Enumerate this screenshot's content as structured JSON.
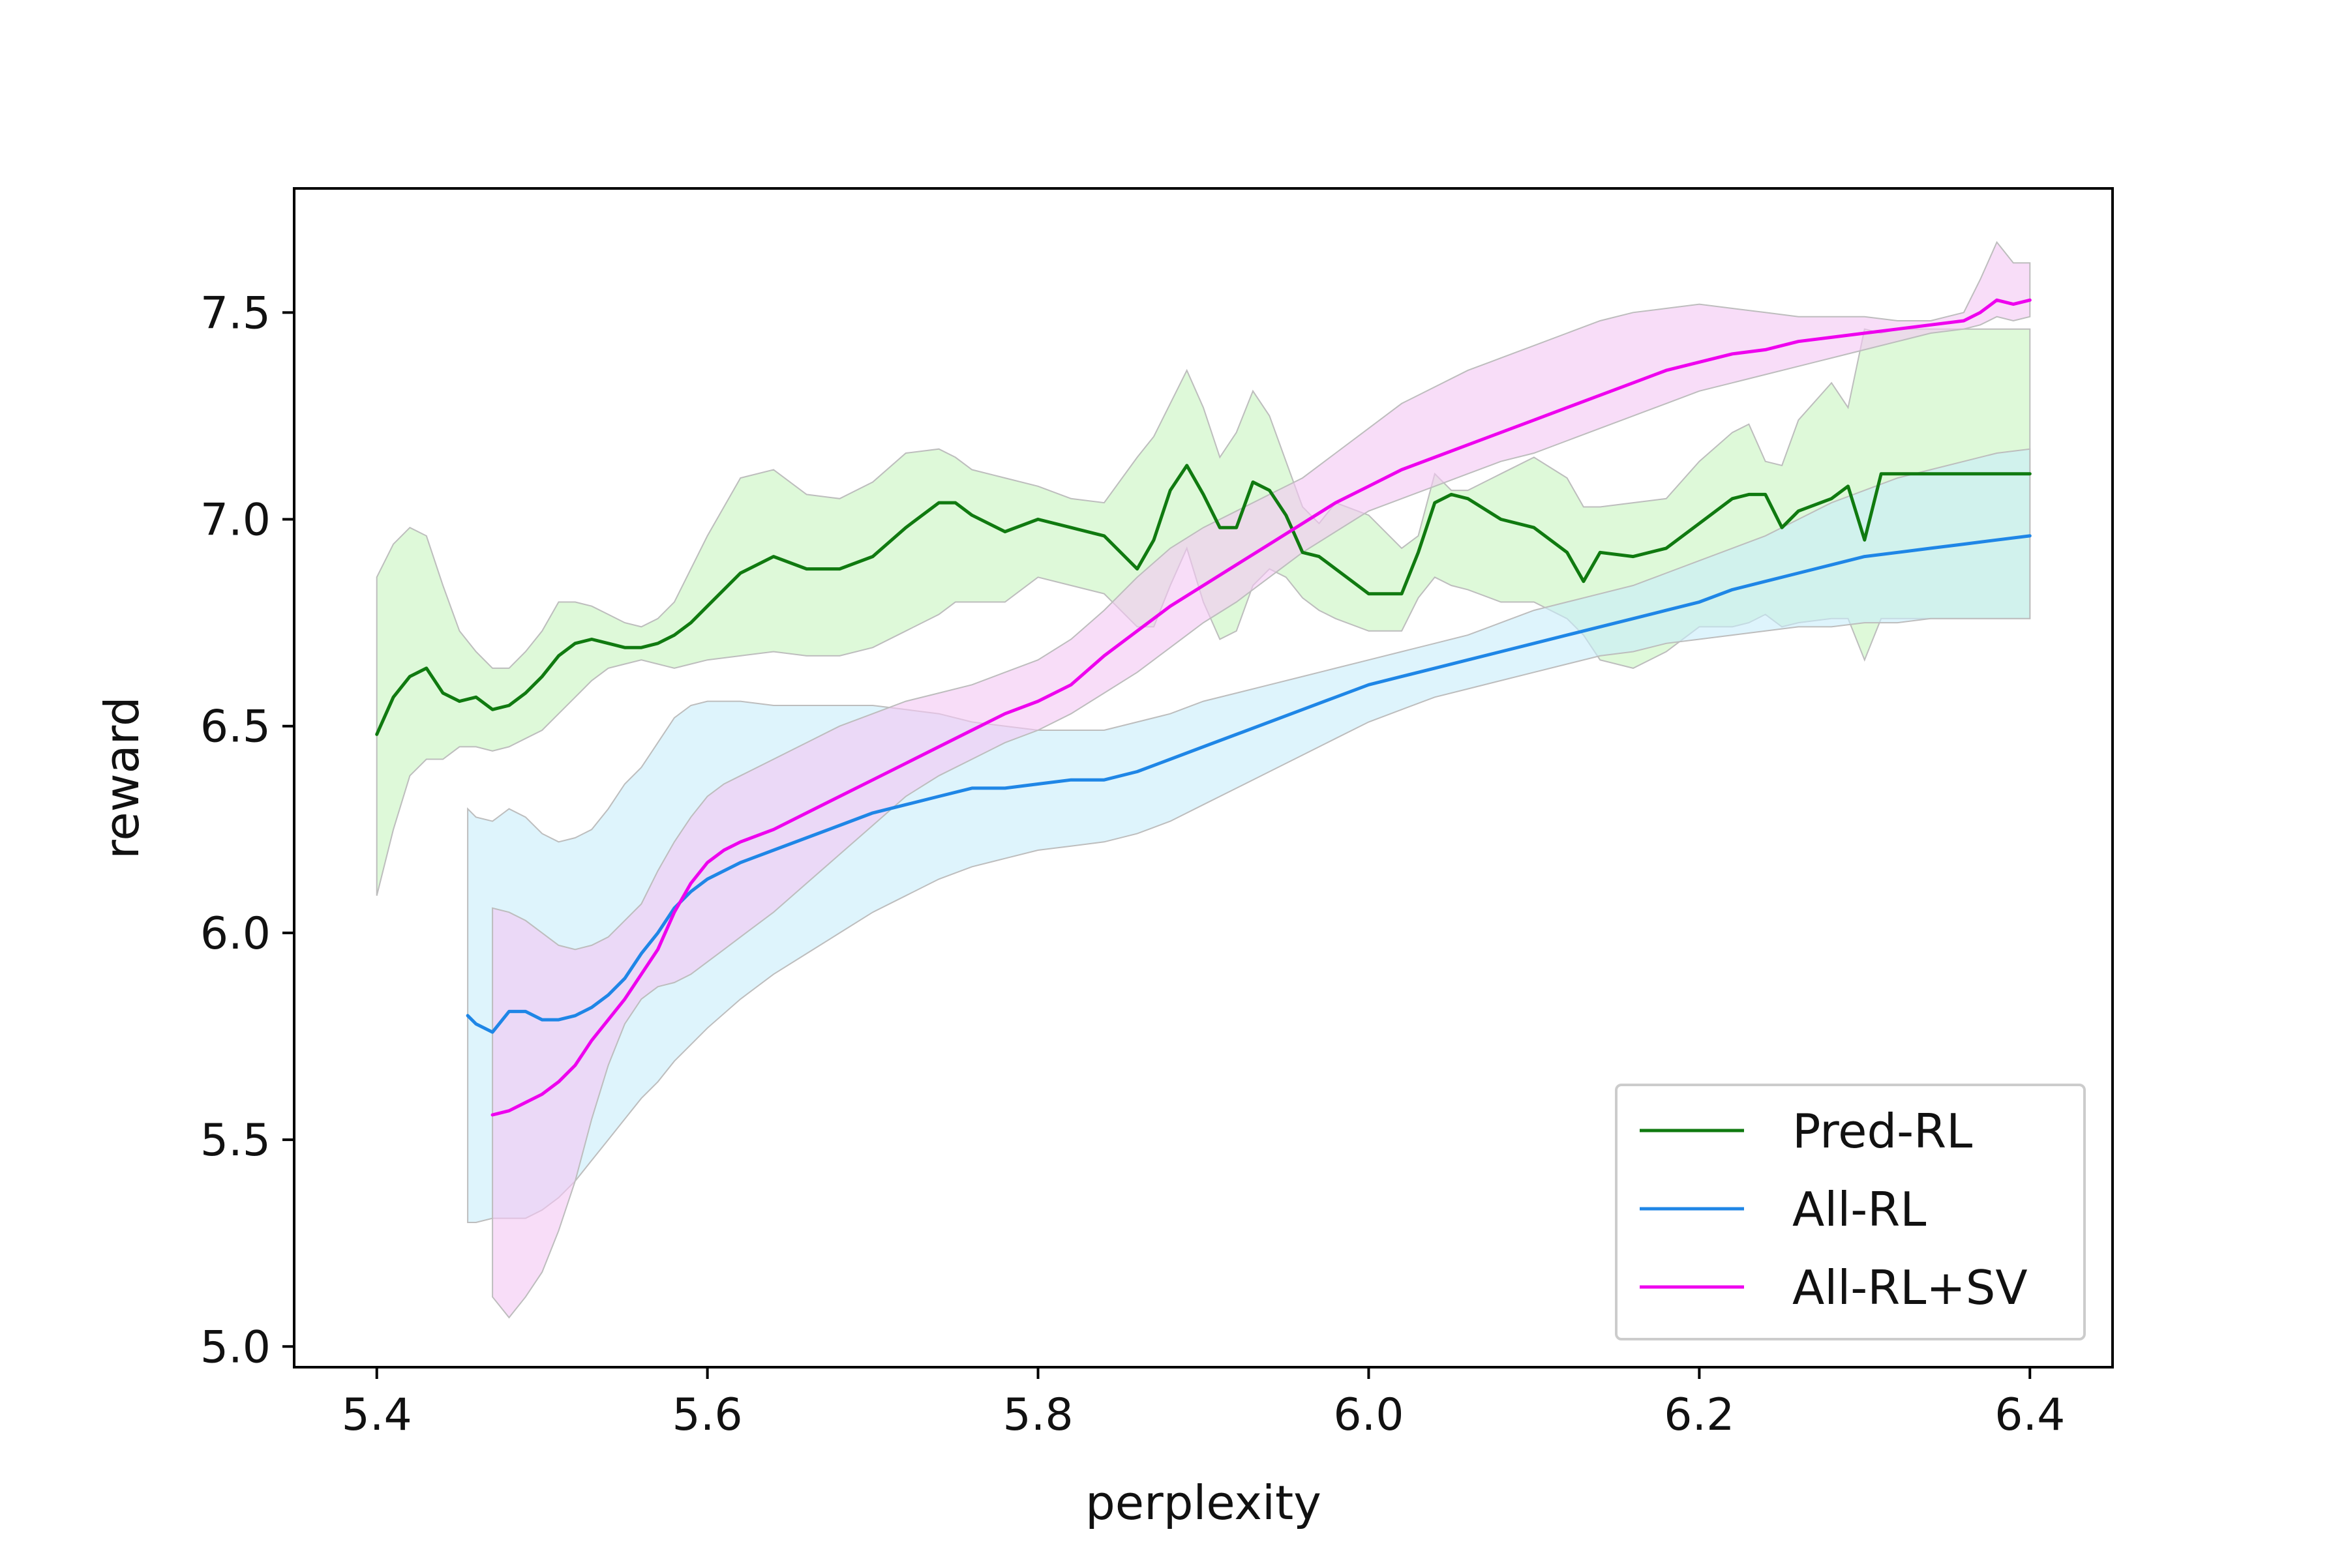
{
  "chart_data": {
    "type": "line",
    "xlabel": "perplexity",
    "ylabel": "reward",
    "xlim": [
      5.35,
      6.45
    ],
    "ylim": [
      4.95,
      7.8
    ],
    "xticks": [
      5.4,
      5.6,
      5.8,
      6.0,
      6.2,
      6.4
    ],
    "xtick_labels": [
      "5.4",
      "5.6",
      "5.8",
      "6.0",
      "6.2",
      "6.4"
    ],
    "yticks": [
      5.0,
      5.5,
      6.0,
      6.5,
      7.0,
      7.5
    ],
    "ytick_labels": [
      "5.0",
      "5.5",
      "6.0",
      "6.5",
      "7.0",
      "7.5"
    ],
    "grid": false,
    "legend_position": "lower-right",
    "series": [
      {
        "name": "Pred-RL",
        "color": "#107a10",
        "band_color": "#c8f5c0",
        "x": [
          5.4,
          5.41,
          5.42,
          5.43,
          5.44,
          5.45,
          5.46,
          5.47,
          5.48,
          5.49,
          5.5,
          5.51,
          5.52,
          5.53,
          5.54,
          5.55,
          5.56,
          5.57,
          5.58,
          5.59,
          5.6,
          5.62,
          5.64,
          5.66,
          5.68,
          5.7,
          5.72,
          5.74,
          5.75,
          5.76,
          5.78,
          5.8,
          5.82,
          5.84,
          5.86,
          5.87,
          5.88,
          5.89,
          5.9,
          5.91,
          5.92,
          5.93,
          5.94,
          5.95,
          5.96,
          5.97,
          5.98,
          6.0,
          6.02,
          6.03,
          6.04,
          6.05,
          6.06,
          6.08,
          6.1,
          6.12,
          6.13,
          6.14,
          6.16,
          6.18,
          6.2,
          6.22,
          6.23,
          6.24,
          6.25,
          6.26,
          6.28,
          6.29,
          6.3,
          6.31,
          6.32,
          6.34,
          6.36,
          6.38,
          6.4
        ],
        "y": [
          6.48,
          6.57,
          6.62,
          6.64,
          6.58,
          6.56,
          6.57,
          6.54,
          6.55,
          6.58,
          6.62,
          6.67,
          6.7,
          6.71,
          6.7,
          6.69,
          6.69,
          6.7,
          6.72,
          6.75,
          6.79,
          6.87,
          6.91,
          6.88,
          6.88,
          6.91,
          6.98,
          7.04,
          7.04,
          7.01,
          6.97,
          7.0,
          6.98,
          6.96,
          6.88,
          6.95,
          7.07,
          7.13,
          7.06,
          6.98,
          6.98,
          7.09,
          7.07,
          7.01,
          6.92,
          6.91,
          6.88,
          6.82,
          6.82,
          6.92,
          7.04,
          7.06,
          7.05,
          7.0,
          6.98,
          6.92,
          6.85,
          6.92,
          6.91,
          6.93,
          6.99,
          7.05,
          7.06,
          7.06,
          6.98,
          7.02,
          7.05,
          7.08,
          6.95,
          7.11,
          7.11,
          7.11,
          7.11,
          7.11,
          7.11
        ],
        "lower": [
          6.09,
          6.25,
          6.38,
          6.42,
          6.42,
          6.45,
          6.45,
          6.44,
          6.45,
          6.47,
          6.49,
          6.53,
          6.57,
          6.61,
          6.64,
          6.65,
          6.66,
          6.65,
          6.64,
          6.65,
          6.66,
          6.67,
          6.68,
          6.67,
          6.67,
          6.69,
          6.73,
          6.77,
          6.8,
          6.8,
          6.8,
          6.86,
          6.84,
          6.82,
          6.74,
          6.74,
          6.84,
          6.93,
          6.8,
          6.71,
          6.73,
          6.84,
          6.88,
          6.86,
          6.81,
          6.78,
          6.76,
          6.73,
          6.73,
          6.81,
          6.86,
          6.84,
          6.83,
          6.8,
          6.8,
          6.76,
          6.72,
          6.66,
          6.64,
          6.68,
          6.74,
          6.74,
          6.75,
          6.77,
          6.74,
          6.75,
          6.76,
          6.76,
          6.66,
          6.76,
          6.76,
          6.76,
          6.76,
          6.76,
          6.76
        ],
        "upper": [
          6.86,
          6.94,
          6.98,
          6.96,
          6.84,
          6.73,
          6.68,
          6.64,
          6.64,
          6.68,
          6.73,
          6.8,
          6.8,
          6.79,
          6.77,
          6.75,
          6.74,
          6.76,
          6.8,
          6.88,
          6.96,
          7.1,
          7.12,
          7.06,
          7.05,
          7.09,
          7.16,
          7.17,
          7.15,
          7.12,
          7.1,
          7.08,
          7.05,
          7.04,
          7.15,
          7.2,
          7.28,
          7.36,
          7.27,
          7.15,
          7.21,
          7.31,
          7.25,
          7.14,
          7.03,
          6.99,
          7.04,
          7.01,
          6.93,
          6.96,
          7.11,
          7.07,
          7.07,
          7.11,
          7.15,
          7.1,
          7.03,
          7.03,
          7.04,
          7.05,
          7.14,
          7.21,
          7.23,
          7.14,
          7.13,
          7.24,
          7.33,
          7.27,
          7.46,
          7.45,
          7.46,
          7.46,
          7.46,
          7.46,
          7.46
        ]
      },
      {
        "name": "All-RL",
        "color": "#1f86e6",
        "band_color": "#c8ecfa",
        "x": [
          5.455,
          5.46,
          5.47,
          5.48,
          5.49,
          5.5,
          5.51,
          5.52,
          5.53,
          5.54,
          5.55,
          5.56,
          5.57,
          5.58,
          5.59,
          5.6,
          5.62,
          5.64,
          5.66,
          5.68,
          5.7,
          5.72,
          5.74,
          5.76,
          5.78,
          5.8,
          5.82,
          5.84,
          5.86,
          5.88,
          5.9,
          5.92,
          5.94,
          5.96,
          5.98,
          6.0,
          6.02,
          6.04,
          6.06,
          6.08,
          6.1,
          6.12,
          6.14,
          6.16,
          6.18,
          6.2,
          6.22,
          6.24,
          6.26,
          6.28,
          6.3,
          6.32,
          6.34,
          6.36,
          6.38,
          6.4
        ],
        "y": [
          5.8,
          5.78,
          5.76,
          5.81,
          5.81,
          5.79,
          5.79,
          5.8,
          5.82,
          5.85,
          5.89,
          5.95,
          6.0,
          6.06,
          6.1,
          6.13,
          6.17,
          6.2,
          6.23,
          6.26,
          6.29,
          6.31,
          6.33,
          6.35,
          6.35,
          6.36,
          6.37,
          6.37,
          6.39,
          6.42,
          6.45,
          6.48,
          6.51,
          6.54,
          6.57,
          6.6,
          6.62,
          6.64,
          6.66,
          6.68,
          6.7,
          6.72,
          6.74,
          6.76,
          6.78,
          6.8,
          6.83,
          6.85,
          6.87,
          6.89,
          6.91,
          6.92,
          6.93,
          6.94,
          6.95,
          6.96
        ],
        "lower": [
          5.3,
          5.3,
          5.31,
          5.31,
          5.31,
          5.33,
          5.36,
          5.4,
          5.45,
          5.5,
          5.55,
          5.6,
          5.64,
          5.69,
          5.73,
          5.77,
          5.84,
          5.9,
          5.95,
          6.0,
          6.05,
          6.09,
          6.13,
          6.16,
          6.18,
          6.2,
          6.21,
          6.22,
          6.24,
          6.27,
          6.31,
          6.35,
          6.39,
          6.43,
          6.47,
          6.51,
          6.54,
          6.57,
          6.59,
          6.61,
          6.63,
          6.65,
          6.67,
          6.68,
          6.7,
          6.71,
          6.72,
          6.73,
          6.74,
          6.74,
          6.75,
          6.75,
          6.76,
          6.76,
          6.76,
          6.76
        ],
        "upper": [
          6.3,
          6.28,
          6.27,
          6.3,
          6.28,
          6.24,
          6.22,
          6.23,
          6.25,
          6.3,
          6.36,
          6.4,
          6.46,
          6.52,
          6.55,
          6.56,
          6.56,
          6.55,
          6.55,
          6.55,
          6.55,
          6.54,
          6.53,
          6.51,
          6.5,
          6.49,
          6.49,
          6.49,
          6.51,
          6.53,
          6.56,
          6.58,
          6.6,
          6.62,
          6.64,
          6.66,
          6.68,
          6.7,
          6.72,
          6.75,
          6.78,
          6.8,
          6.82,
          6.84,
          6.87,
          6.9,
          6.93,
          6.96,
          7.0,
          7.04,
          7.07,
          7.1,
          7.12,
          7.14,
          7.16,
          7.17
        ]
      },
      {
        "name": "All-RL+SV",
        "color": "#ee00ee",
        "band_color": "#f4c6f4",
        "x": [
          5.47,
          5.48,
          5.49,
          5.5,
          5.51,
          5.52,
          5.53,
          5.54,
          5.55,
          5.56,
          5.57,
          5.58,
          5.59,
          5.6,
          5.61,
          5.62,
          5.64,
          5.66,
          5.68,
          5.7,
          5.72,
          5.74,
          5.76,
          5.78,
          5.8,
          5.82,
          5.84,
          5.86,
          5.88,
          5.9,
          5.92,
          5.94,
          5.96,
          5.98,
          6.0,
          6.02,
          6.04,
          6.06,
          6.08,
          6.1,
          6.12,
          6.14,
          6.16,
          6.18,
          6.2,
          6.22,
          6.24,
          6.26,
          6.28,
          6.3,
          6.32,
          6.34,
          6.36,
          6.37,
          6.38,
          6.39,
          6.4
        ],
        "y": [
          5.56,
          5.57,
          5.59,
          5.61,
          5.64,
          5.68,
          5.74,
          5.79,
          5.84,
          5.9,
          5.96,
          6.05,
          6.12,
          6.17,
          6.2,
          6.22,
          6.25,
          6.29,
          6.33,
          6.37,
          6.41,
          6.45,
          6.49,
          6.53,
          6.56,
          6.6,
          6.67,
          6.73,
          6.79,
          6.84,
          6.89,
          6.94,
          6.99,
          7.04,
          7.08,
          7.12,
          7.15,
          7.18,
          7.21,
          7.24,
          7.27,
          7.3,
          7.33,
          7.36,
          7.38,
          7.4,
          7.41,
          7.43,
          7.44,
          7.45,
          7.46,
          7.47,
          7.48,
          7.5,
          7.53,
          7.52,
          7.53
        ],
        "lower": [
          5.12,
          5.07,
          5.12,
          5.18,
          5.28,
          5.4,
          5.55,
          5.68,
          5.78,
          5.84,
          5.87,
          5.88,
          5.9,
          5.93,
          5.96,
          5.99,
          6.05,
          6.12,
          6.19,
          6.26,
          6.33,
          6.38,
          6.42,
          6.46,
          6.49,
          6.53,
          6.58,
          6.63,
          6.69,
          6.75,
          6.8,
          6.86,
          6.92,
          6.97,
          7.02,
          7.05,
          7.08,
          7.11,
          7.14,
          7.16,
          7.19,
          7.22,
          7.25,
          7.28,
          7.31,
          7.33,
          7.35,
          7.37,
          7.39,
          7.41,
          7.43,
          7.45,
          7.46,
          7.47,
          7.49,
          7.48,
          7.49
        ],
        "upper": [
          6.06,
          6.05,
          6.03,
          6.0,
          5.97,
          5.96,
          5.97,
          5.99,
          6.03,
          6.07,
          6.15,
          6.22,
          6.28,
          6.33,
          6.36,
          6.38,
          6.42,
          6.46,
          6.5,
          6.53,
          6.56,
          6.58,
          6.6,
          6.63,
          6.66,
          6.71,
          6.78,
          6.86,
          6.93,
          6.98,
          7.02,
          7.06,
          7.1,
          7.16,
          7.22,
          7.28,
          7.32,
          7.36,
          7.39,
          7.42,
          7.45,
          7.48,
          7.5,
          7.51,
          7.52,
          7.51,
          7.5,
          7.49,
          7.49,
          7.49,
          7.48,
          7.48,
          7.5,
          7.58,
          7.67,
          7.62,
          7.62
        ]
      }
    ]
  }
}
